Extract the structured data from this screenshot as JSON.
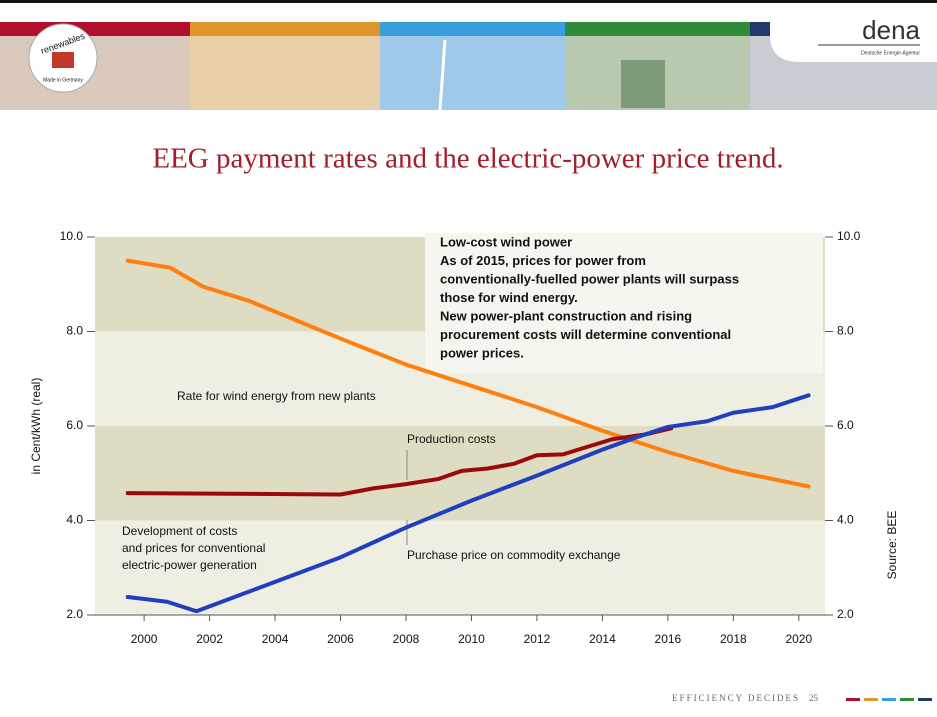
{
  "slide": {
    "logo": "dena",
    "logo_subtitle": "Deutsche Energie-Agentur",
    "badge": "renewables",
    "badge_subtitle": "Made in Germany",
    "title": "EEG payment rates and the electric-power price trend.",
    "footer": "EFFICIENCY DECIDES",
    "page_number": "25"
  },
  "chart_data": {
    "type": "line",
    "y_label": "in Cent/kWh (real)",
    "source": "Source: BEE",
    "xlim": [
      1998.5,
      2020.8
    ],
    "xticks": [
      2000,
      2002,
      2004,
      2006,
      2008,
      2010,
      2012,
      2014,
      2016,
      2018,
      2020
    ],
    "ylim": [
      2,
      10
    ],
    "yticks": [
      {
        "value": 2,
        "label": "2.0"
      },
      {
        "value": 4,
        "label": "4.0"
      },
      {
        "value": 6,
        "label": "6.0"
      },
      {
        "value": 8,
        "label": "8.0"
      },
      {
        "value": 10,
        "label": "10.0"
      }
    ],
    "y2lim": [
      2,
      10
    ],
    "y2ticks": [
      {
        "value": 2,
        "label": "2.0"
      },
      {
        "value": 4,
        "label": "4.0"
      },
      {
        "value": 6,
        "label": "6.0"
      },
      {
        "value": 8,
        "label": "8.0"
      },
      {
        "value": 10,
        "label": "10.0"
      }
    ],
    "band_colors": [
      "#efeee2",
      "#dfdcc4"
    ],
    "series": [
      {
        "name": "Rate for wind energy from new plants",
        "color": "#ff7f0e",
        "x": [
          1999.5,
          2000.8,
          2001.8,
          2003.2,
          2006,
          2008,
          2010,
          2012,
          2014,
          2016,
          2018,
          2020.3
        ],
        "values": [
          9.5,
          9.35,
          8.95,
          8.65,
          7.85,
          7.3,
          6.85,
          6.4,
          5.9,
          5.45,
          5.05,
          4.72
        ]
      },
      {
        "name": "Production costs",
        "color": "#9b0a0a",
        "x": [
          1999.5,
          2002,
          2006,
          2007,
          2008,
          2009,
          2009.7,
          2010.5,
          2011.3,
          2012,
          2012.8,
          2013.5,
          2014.3,
          2015.3,
          2016.1
        ],
        "values": [
          4.58,
          4.57,
          4.55,
          4.68,
          4.77,
          4.88,
          5.05,
          5.1,
          5.2,
          5.38,
          5.4,
          5.55,
          5.72,
          5.82,
          5.95
        ]
      },
      {
        "name": "Purchase price on commodity exchange",
        "color": "#1f3fbf",
        "x": [
          1999.5,
          2000.7,
          2001.6,
          2004,
          2006,
          2008,
          2010,
          2012,
          2014,
          2015,
          2016,
          2017.2,
          2018,
          2019.2,
          2020.3
        ],
        "values": [
          2.38,
          2.28,
          2.08,
          2.7,
          3.22,
          3.85,
          4.42,
          4.95,
          5.5,
          5.75,
          5.98,
          6.1,
          6.28,
          6.4,
          6.65
        ]
      }
    ],
    "note": [
      "Development of costs",
      "and prices for conventional",
      "electric-power generation"
    ],
    "callout": [
      "Low-cost wind power",
      "As of 2015, prices for power from",
      "conventionally-fuelled power plants will surpass",
      "those for wind energy.",
      "New power-plant construction and rising",
      "procurement costs will determine conventional",
      "power prices."
    ]
  }
}
